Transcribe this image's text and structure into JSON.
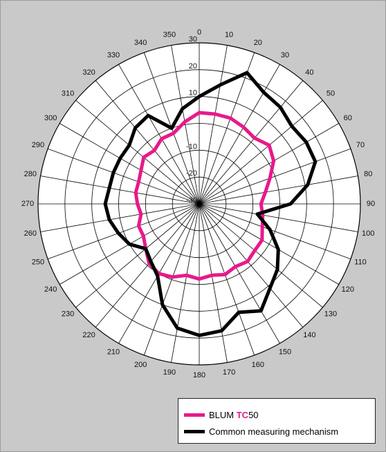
{
  "chart_data": {
    "type": "polar-line",
    "angular_unit": "degrees",
    "angle_zero": "top",
    "angle_direction": "clockwise",
    "angle_ticks": [
      0,
      10,
      20,
      30,
      40,
      50,
      60,
      70,
      80,
      90,
      100,
      110,
      120,
      130,
      140,
      150,
      160,
      170,
      180,
      190,
      200,
      210,
      220,
      230,
      240,
      250,
      260,
      270,
      280,
      290,
      300,
      310,
      320,
      330,
      340,
      350
    ],
    "radial_range": [
      -30,
      30
    ],
    "radial_ticks": [
      -30,
      -20,
      -10,
      0,
      10,
      20,
      30
    ],
    "radial_tick_labels_shown": [
      -30,
      -20,
      -10,
      10,
      20,
      30
    ],
    "grid": true,
    "legend_position": "bottom-right",
    "series": [
      {
        "name": "BLUM TC50",
        "color": "#e8198b",
        "points": [
          [
            0,
            4
          ],
          [
            10,
            4
          ],
          [
            20,
            4
          ],
          [
            30,
            3
          ],
          [
            40,
            2
          ],
          [
            50,
            4
          ],
          [
            60,
            2
          ],
          [
            70,
            -2
          ],
          [
            80,
            -5
          ],
          [
            90,
            -7
          ],
          [
            100,
            -6
          ],
          [
            110,
            -5
          ],
          [
            120,
            -3
          ],
          [
            130,
            -3
          ],
          [
            140,
            -2
          ],
          [
            150,
            -3
          ],
          [
            160,
            -2
          ],
          [
            170,
            -3
          ],
          [
            180,
            -2
          ],
          [
            190,
            -3
          ],
          [
            200,
            -1
          ],
          [
            210,
            0
          ],
          [
            220,
            -1
          ],
          [
            230,
            -4
          ],
          [
            240,
            -6
          ],
          [
            250,
            -6
          ],
          [
            260,
            -8
          ],
          [
            270,
            -7
          ],
          [
            280,
            -6
          ],
          [
            290,
            -6
          ],
          [
            300,
            -5
          ],
          [
            310,
            -3
          ],
          [
            320,
            -4
          ],
          [
            330,
            -2
          ],
          [
            340,
            -2
          ],
          [
            350,
            1
          ]
        ]
      },
      {
        "name": "Common measuring mechanism",
        "color": "#000000",
        "points": [
          [
            0,
            10
          ],
          [
            10,
            15
          ],
          [
            20,
            22
          ],
          [
            30,
            18
          ],
          [
            40,
            17
          ],
          [
            50,
            15
          ],
          [
            60,
            16
          ],
          [
            70,
            16
          ],
          [
            80,
            11
          ],
          [
            90,
            4
          ],
          [
            100,
            -8
          ],
          [
            110,
            -2
          ],
          [
            120,
            4
          ],
          [
            130,
            8
          ],
          [
            140,
            11
          ],
          [
            150,
            16
          ],
          [
            160,
            13
          ],
          [
            170,
            18
          ],
          [
            180,
            19
          ],
          [
            190,
            17
          ],
          [
            200,
            10
          ],
          [
            210,
            1
          ],
          [
            220,
            -2
          ],
          [
            230,
            -4
          ],
          [
            240,
            0
          ],
          [
            250,
            2
          ],
          [
            260,
            4
          ],
          [
            270,
            5
          ],
          [
            280,
            4
          ],
          [
            290,
            4
          ],
          [
            300,
            4
          ],
          [
            310,
            4
          ],
          [
            320,
            7
          ],
          [
            330,
            8
          ],
          [
            340,
            0
          ],
          [
            350,
            6
          ]
        ]
      }
    ]
  },
  "legend": {
    "items": [
      {
        "prefix": "BLUM ",
        "accent": "TC",
        "suffix": "50",
        "color": "#e8198b",
        "accent_color": "#e8198b"
      },
      {
        "prefix": "Common measuring mechanism",
        "accent": "",
        "suffix": "",
        "color": "#000000",
        "accent_color": "#000000"
      }
    ]
  }
}
